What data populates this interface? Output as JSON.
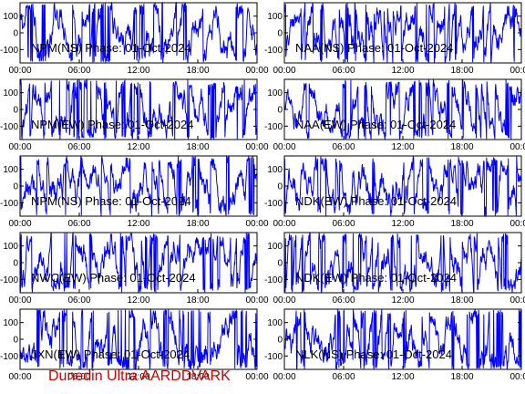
{
  "page": {
    "footer": "Dunedin Ultra AARDDVARK"
  },
  "style": {
    "trace_color": "#0000ff",
    "footer_color": "#cc0000",
    "axis_color": "#000000"
  },
  "chart_data": [
    {
      "type": "line",
      "title": "NPM(NS) Phase: 01-Oct-2024",
      "xticks": [
        "00:00",
        "06:00",
        "12:00",
        "18:00",
        "00:00"
      ],
      "xlim": [
        0,
        24
      ],
      "ylim": [
        -180,
        180
      ],
      "yticks": [
        -100,
        0,
        100
      ],
      "grid": false,
      "series": [
        {
          "values": []
        }
      ]
    },
    {
      "type": "line",
      "title": "NAA(NS) Phase: 01-Oct-2024",
      "xticks": [
        "00:00",
        "06:00",
        "12:00",
        "18:00",
        "00:00"
      ],
      "xlim": [
        0,
        24
      ],
      "ylim": [
        -180,
        180
      ],
      "yticks": [
        -100,
        0,
        100
      ],
      "grid": false,
      "series": [
        {
          "values": []
        }
      ]
    },
    {
      "type": "line",
      "title": "NPM(EW) Phase: 01-Oct-2024",
      "xticks": [
        "00:00",
        "06:00",
        "12:00",
        "18:00",
        "00:00"
      ],
      "xlim": [
        0,
        24
      ],
      "ylim": [
        -180,
        180
      ],
      "yticks": [
        -100,
        0,
        100
      ],
      "grid": false,
      "series": [
        {
          "values": []
        }
      ]
    },
    {
      "type": "line",
      "title": "NAA(EW) Phase: 01-Oct-2024",
      "xticks": [
        "00:00",
        "06:00",
        "12:00",
        "18:00",
        "00:00"
      ],
      "xlim": [
        0,
        24
      ],
      "ylim": [
        -180,
        180
      ],
      "yticks": [
        -100,
        0,
        100
      ],
      "grid": false,
      "series": [
        {
          "values": []
        }
      ]
    },
    {
      "type": "line",
      "title": "NPM(NS) Phase: 01-Oct-2024",
      "xticks": [
        "00:00",
        "06:00",
        "12:00",
        "18:00",
        "00:00"
      ],
      "xlim": [
        0,
        24
      ],
      "ylim": [
        -180,
        180
      ],
      "yticks": [
        -100,
        0,
        100
      ],
      "grid": false,
      "series": [
        {
          "values": []
        }
      ]
    },
    {
      "type": "line",
      "title": "NDK(EW) Phase: 01-Oct-2024",
      "xticks": [
        "00:00",
        "06:00",
        "12:00",
        "18:00",
        "00:00"
      ],
      "xlim": [
        0,
        24
      ],
      "ylim": [
        -180,
        180
      ],
      "yticks": [
        -100,
        0,
        100
      ],
      "grid": false,
      "series": [
        {
          "values": []
        }
      ]
    },
    {
      "type": "line",
      "title": "NWC(EW) Phase: 01-Oct-2024",
      "xticks": [
        "00:00",
        "06:00",
        "12:00",
        "18:00",
        "00:00"
      ],
      "xlim": [
        0,
        24
      ],
      "ylim": [
        -180,
        180
      ],
      "yticks": [
        -100,
        0,
        100
      ],
      "grid": false,
      "series": [
        {
          "values": []
        }
      ]
    },
    {
      "type": "line",
      "title": "NDK(EW) Phase: 01-Oct-2024",
      "xticks": [
        "00:00",
        "06:00",
        "12:00",
        "18:00",
        "00:00"
      ],
      "xlim": [
        0,
        24
      ],
      "ylim": [
        -180,
        180
      ],
      "yticks": [
        -100,
        0,
        100
      ],
      "grid": false,
      "series": [
        {
          "values": []
        }
      ]
    },
    {
      "type": "line",
      "title": "JXN(EW) Phase: 01-Oct-2024",
      "xticks": [
        "00:00",
        "06:00",
        "12:00",
        "18:00",
        "00:00"
      ],
      "xlim": [
        0,
        24
      ],
      "ylim": [
        -180,
        180
      ],
      "yticks": [
        -100,
        0,
        100
      ],
      "grid": false,
      "series": [
        {
          "values": []
        }
      ]
    },
    {
      "type": "line",
      "title": "NLK(NS) Phase: 01-Oct-2024",
      "xticks": [
        "00:00",
        "06:00",
        "12:00",
        "18:00",
        "00:00"
      ],
      "xlim": [
        0,
        24
      ],
      "ylim": [
        -180,
        180
      ],
      "yticks": [
        -100,
        0,
        100
      ],
      "grid": false,
      "series": [
        {
          "values": []
        }
      ]
    }
  ]
}
